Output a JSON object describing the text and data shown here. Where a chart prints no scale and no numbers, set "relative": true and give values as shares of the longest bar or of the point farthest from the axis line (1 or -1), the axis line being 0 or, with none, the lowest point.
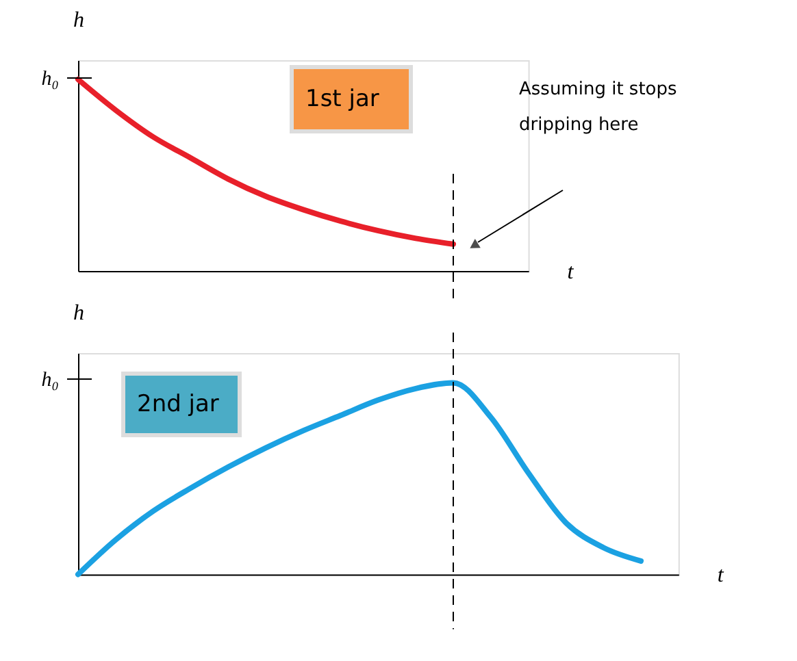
{
  "chart_data": [
    {
      "type": "line",
      "title": "1st jar",
      "xlabel": "t",
      "ylabel": "h",
      "relative": true,
      "tick_labels": false,
      "grid": false,
      "marker": "none",
      "categories": [
        null,
        null,
        null,
        null,
        null,
        null,
        null,
        null,
        null,
        null,
        null,
        null,
        null
      ],
      "series": [
        {
          "color": "#e8202a",
          "values": [
            1,
            0.84,
            0.7,
            0.59,
            0.48,
            0.39,
            0.32,
            0.26,
            0.21,
            0.17,
            0.14,
            null,
            null
          ]
        }
      ],
      "annotations": [
        "h₀",
        "Assuming it stops dripping here"
      ]
    },
    {
      "type": "line",
      "title": "2nd jar",
      "xlabel": "t",
      "ylabel": "h",
      "relative": true,
      "tick_labels": false,
      "grid": false,
      "marker": "none",
      "categories": [
        null,
        null,
        null,
        null,
        null,
        null,
        null,
        null,
        null,
        null,
        null,
        null,
        null,
        null,
        null,
        null,
        null
      ],
      "series": [
        {
          "color": "#1ba1e2",
          "values": [
            0,
            0.18,
            0.33,
            0.45,
            0.56,
            0.66,
            0.75,
            0.83,
            0.91,
            0.97,
            1,
            0.82,
            0.53,
            0.27,
            0.14,
            0.07,
            null
          ]
        }
      ],
      "annotations": [
        "h₀"
      ]
    }
  ]
}
